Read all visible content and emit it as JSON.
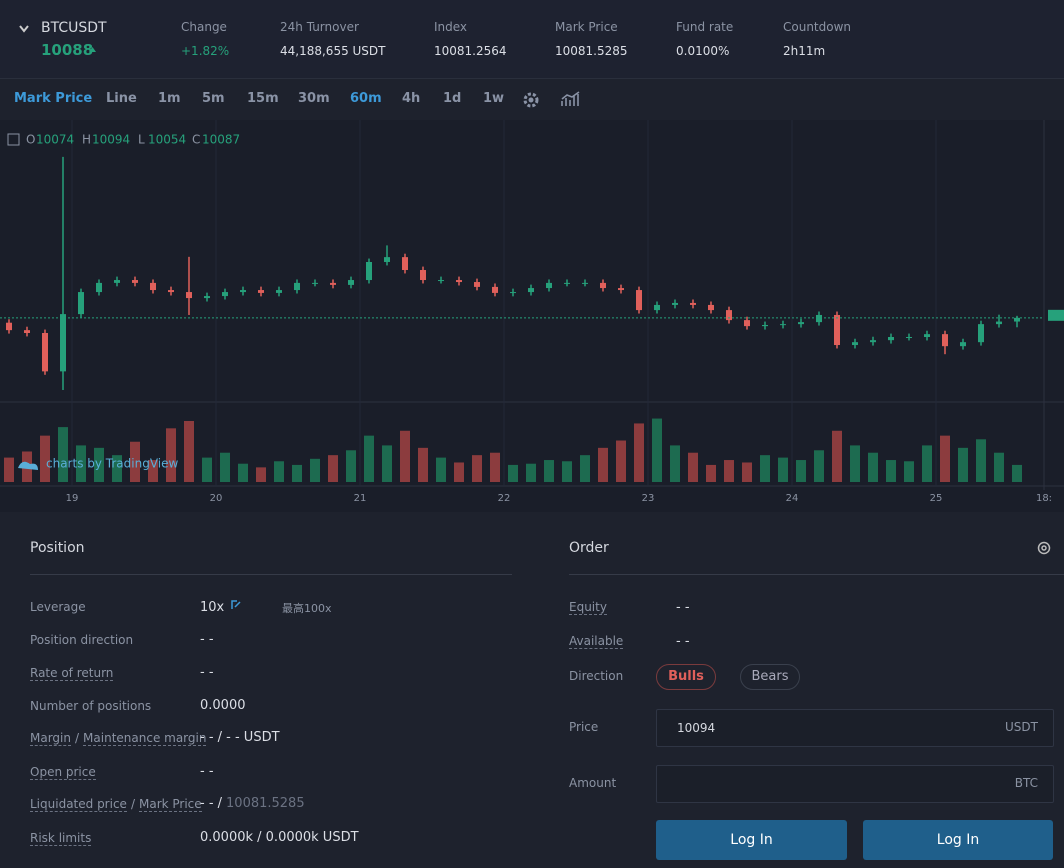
{
  "header": {
    "symbol": "BTCUSDT",
    "price": "10088",
    "stats": [
      {
        "label": "Change",
        "value": "+1.82%"
      },
      {
        "label": "24h Turnover",
        "value": "44,188,655 USDT"
      },
      {
        "label": "Index",
        "value": "10081.2564"
      },
      {
        "label": "Mark Price",
        "value": "10081.5285"
      },
      {
        "label": "Fund rate",
        "value": "0.0100%"
      },
      {
        "label": "Countdown",
        "value": "2h11m"
      }
    ]
  },
  "toolbar": {
    "items": [
      "Mark Price",
      "Line",
      "1m",
      "5m",
      "15m",
      "30m",
      "60m",
      "4h",
      "1d",
      "1w"
    ],
    "active": [
      0,
      6
    ]
  },
  "chart_data": {
    "type": "candlestick",
    "watermark": "charts by TradingView",
    "ohlc_labels": [
      "O",
      "H",
      "L",
      "C"
    ],
    "colors": {
      "up": "#26a17b",
      "down": "#e0605b",
      "up_volume": "#1d6b50",
      "down_volume": "#8c3c3e"
    },
    "x": [
      13.5,
      16.5,
      19.5,
      22.5,
      25.5,
      28.5,
      31.5,
      34.5,
      37.5,
      40.5,
      43.5,
      46.5,
      49.5,
      52.5,
      55.5,
      58.5,
      61.5,
      64.5,
      67.5,
      70.5,
      73.5,
      76.5,
      79.5,
      82.5,
      85.5,
      88.5,
      91.5,
      94.5,
      97.5,
      100.5,
      103.5,
      106.5,
      109.5,
      112.5,
      115.5,
      118.5,
      121.5,
      124.5,
      127.5,
      130.5,
      133.5,
      136.5,
      139.5,
      142.5,
      145.5,
      148.5,
      151.5,
      154.5,
      157.5,
      160.5,
      163.5,
      166.5,
      169.5,
      172.5,
      175.5,
      178.5,
      181.5
    ],
    "open": [
      10070,
      10044,
      10034,
      9900,
      10100,
      10177,
      10209,
      10219,
      10209,
      10184,
      10177,
      10156,
      10163,
      10177,
      10184,
      10174,
      10184,
      10209,
      10209,
      10202,
      10219,
      10282,
      10299,
      10254,
      10219,
      10219,
      10212,
      10195,
      10174,
      10177,
      10191,
      10209,
      10209,
      10209,
      10191,
      10184,
      10114,
      10132,
      10139,
      10132,
      10114,
      10079,
      10058,
      10062,
      10065,
      10072,
      10097,
      9992,
      10002,
      10009,
      10020,
      10020,
      10030,
      9988,
      10002,
      10065,
      10074
    ],
    "high": [
      10082,
      10056,
      10046,
      10649,
      10189,
      10221,
      10231,
      10231,
      10221,
      10196,
      10300,
      10175,
      10189,
      10196,
      10196,
      10196,
      10221,
      10221,
      10221,
      10231,
      10294,
      10340,
      10311,
      10266,
      10231,
      10231,
      10224,
      10207,
      10189,
      10203,
      10221,
      10221,
      10221,
      10221,
      10203,
      10196,
      10144,
      10151,
      10151,
      10144,
      10126,
      10091,
      10074,
      10077,
      10084,
      10109,
      10109,
      10014,
      10021,
      10032,
      10032,
      10042,
      10042,
      10014,
      10077,
      10098,
      10094
    ],
    "low": [
      10032,
      10022,
      9888,
      9835,
      10088,
      10165,
      10197,
      10197,
      10172,
      10165,
      10097,
      10144,
      10151,
      10165,
      10162,
      10162,
      10172,
      10197,
      10190,
      10190,
      10207,
      10270,
      10242,
      10207,
      10207,
      10200,
      10183,
      10162,
      10162,
      10165,
      10179,
      10197,
      10197,
      10179,
      10172,
      10102,
      10102,
      10120,
      10120,
      10102,
      10067,
      10046,
      10046,
      10050,
      10053,
      10060,
      9980,
      9980,
      9990,
      9997,
      10008,
      10008,
      9960,
      9976,
      9990,
      10053,
      10054
    ],
    "close": [
      10044,
      10034,
      9900,
      10100,
      10177,
      10209,
      10219,
      10209,
      10184,
      10177,
      10156,
      10163,
      10177,
      10184,
      10174,
      10184,
      10209,
      10209,
      10202,
      10219,
      10282,
      10299,
      10254,
      10219,
      10219,
      10212,
      10195,
      10174,
      10177,
      10191,
      10209,
      10209,
      10209,
      10191,
      10184,
      10114,
      10132,
      10139,
      10132,
      10114,
      10079,
      10058,
      10062,
      10065,
      10072,
      10097,
      9992,
      10002,
      10009,
      10020,
      10020,
      10030,
      9988,
      10002,
      10065,
      10074,
      10087
    ],
    "volume": [
      20,
      25,
      38,
      45,
      30,
      28,
      22,
      33,
      18,
      44,
      50,
      20,
      24,
      15,
      12,
      17,
      14,
      19,
      22,
      26,
      38,
      30,
      42,
      28,
      20,
      16,
      22,
      24,
      14,
      15,
      18,
      17,
      22,
      28,
      34,
      48,
      52,
      30,
      24,
      14,
      18,
      16,
      22,
      20,
      18,
      26,
      42,
      30,
      24,
      18,
      17,
      30,
      38,
      28,
      35,
      24,
      14
    ],
    "xlim": [
      12,
      186
    ],
    "ylim": [
      9800,
      10750
    ],
    "volume_ylim": [
      0,
      50
    ],
    "xticks": [
      {
        "value": 24,
        "label": "19"
      },
      {
        "value": 48,
        "label": "20"
      },
      {
        "value": 72,
        "label": "21"
      },
      {
        "value": 96,
        "label": "22"
      },
      {
        "value": 120,
        "label": "23"
      },
      {
        "value": 144,
        "label": "24"
      },
      {
        "value": 168,
        "label": "25"
      },
      {
        "value": 186,
        "label": "18:"
      }
    ]
  },
  "position": {
    "title": "Position",
    "rows": [
      {
        "label": [
          "Leverage"
        ],
        "value": "10x",
        "extra": "最高100x"
      },
      {
        "label": [
          "Position direction"
        ],
        "value": "- -"
      },
      {
        "label": [
          "Rate of return"
        ],
        "value": "- -",
        "dashed": true
      },
      {
        "label": [
          "Number of positions"
        ],
        "value": "0.0000"
      },
      {
        "label": [
          "Margin",
          "Maintenance margin"
        ],
        "separator": "/",
        "value": "- - / - - USDT",
        "dashed": true
      },
      {
        "label": [
          "Open price"
        ],
        "value": "- -",
        "dashed": true
      },
      {
        "label": [
          "Liquidated price",
          "Mark Price"
        ],
        "separator": "/",
        "value": "- - /",
        "dashed": true,
        "mark_price": true
      },
      {
        "label": [
          "Risk limits"
        ],
        "value": "0.0000k / 0.0000k USDT",
        "dashed": true
      }
    ]
  },
  "order": {
    "title": "Order",
    "equity": {
      "label": "Equity",
      "value": "- -"
    },
    "available": {
      "label": "Available",
      "value": "- -"
    },
    "direction": {
      "label": "Direction",
      "options": [
        "Bulls",
        "Bears"
      ]
    },
    "price": {
      "label": "Price",
      "value": "10094",
      "unit": "USDT"
    },
    "amount": {
      "label": "Amount",
      "unit": "BTC"
    },
    "buttons": [
      "Log In",
      "Log In"
    ]
  }
}
